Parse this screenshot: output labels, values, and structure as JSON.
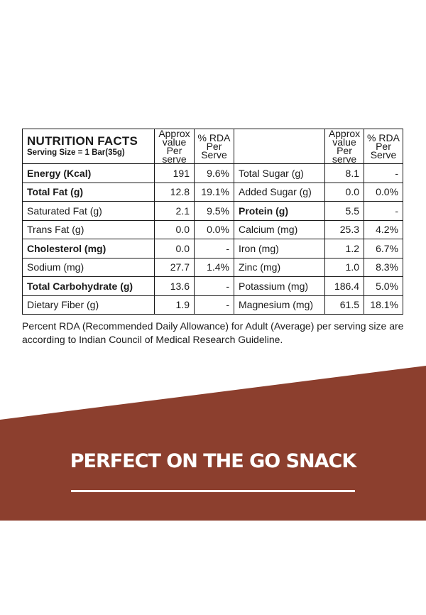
{
  "table": {
    "title": "NUTRITION FACTS",
    "serving": "Serving Size = 1 Bar(35g)",
    "col_approx": "Approx value Per serve",
    "col_rda": "% RDA Per Serve",
    "left_rows": [
      {
        "name": "Energy (Kcal)",
        "value": "191",
        "rda": "9.6%",
        "bold": true
      },
      {
        "name": "Total Fat (g)",
        "value": "12.8",
        "rda": "19.1%",
        "bold": true
      },
      {
        "name": "Saturated Fat (g)",
        "value": "2.1",
        "rda": "9.5%",
        "bold": false
      },
      {
        "name": "Trans Fat (g)",
        "value": "0.0",
        "rda": "0.0%",
        "bold": false
      },
      {
        "name": "Cholesterol (mg)",
        "value": "0.0",
        "rda": "-",
        "bold": true
      },
      {
        "name": "Sodium (mg)",
        "value": "27.7",
        "rda": "1.4%",
        "bold": false
      },
      {
        "name": "Total Carbohydrate (g)",
        "value": "13.6",
        "rda": "-",
        "bold": true
      },
      {
        "name": "Dietary Fiber (g)",
        "value": "1.9",
        "rda": "-",
        "bold": false
      }
    ],
    "right_rows": [
      {
        "name": "Total Sugar (g)",
        "value": "8.1",
        "rda": "-",
        "bold": false
      },
      {
        "name": "Added Sugar (g)",
        "value": "0.0",
        "rda": "0.0%",
        "bold": false
      },
      {
        "name": "Protein (g)",
        "value": "5.5",
        "rda": "-",
        "bold": true
      },
      {
        "name": "Calcium (mg)",
        "value": "25.3",
        "rda": "4.2%",
        "bold": false
      },
      {
        "name": "Iron (mg)",
        "value": "1.2",
        "rda": "6.7%",
        "bold": false
      },
      {
        "name": "Zinc (mg)",
        "value": "1.0",
        "rda": "8.3%",
        "bold": false
      },
      {
        "name": "Potassium (mg)",
        "value": "186.4",
        "rda": "5.0%",
        "bold": false
      },
      {
        "name": "Magnesium (mg)",
        "value": "61.5",
        "rda": "18.1%",
        "bold": false
      }
    ]
  },
  "footnote": "Percent RDA (Recommended Daily Allowance) for Adult (Average) per serving size are according to Indian Council of Medical Research Guideline.",
  "banner": {
    "slogan": "PERFECT ON THE GO SNACK",
    "color": "#8c3f2e"
  }
}
